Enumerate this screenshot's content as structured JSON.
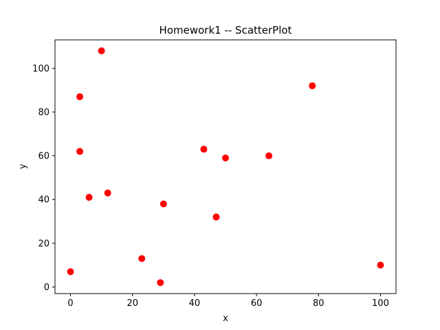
{
  "chart_data": {
    "type": "scatter",
    "title": "Homework1 -- ScatterPlot",
    "xlabel": "x",
    "ylabel": "y",
    "xlim": [
      -5,
      105
    ],
    "ylim": [
      -3,
      113
    ],
    "xticks": [
      0,
      20,
      40,
      60,
      80,
      100
    ],
    "yticks": [
      0,
      20,
      40,
      60,
      80,
      100
    ],
    "grid": false,
    "marker_color": "#ff0000",
    "series": [
      {
        "points": [
          {
            "x": 0,
            "y": 7
          },
          {
            "x": 3,
            "y": 87
          },
          {
            "x": 3,
            "y": 62
          },
          {
            "x": 6,
            "y": 41
          },
          {
            "x": 10,
            "y": 108
          },
          {
            "x": 12,
            "y": 43
          },
          {
            "x": 23,
            "y": 13
          },
          {
            "x": 29,
            "y": 2
          },
          {
            "x": 30,
            "y": 38
          },
          {
            "x": 43,
            "y": 63
          },
          {
            "x": 47,
            "y": 32
          },
          {
            "x": 50,
            "y": 59
          },
          {
            "x": 64,
            "y": 60
          },
          {
            "x": 78,
            "y": 92
          },
          {
            "x": 100,
            "y": 10
          }
        ]
      }
    ]
  }
}
